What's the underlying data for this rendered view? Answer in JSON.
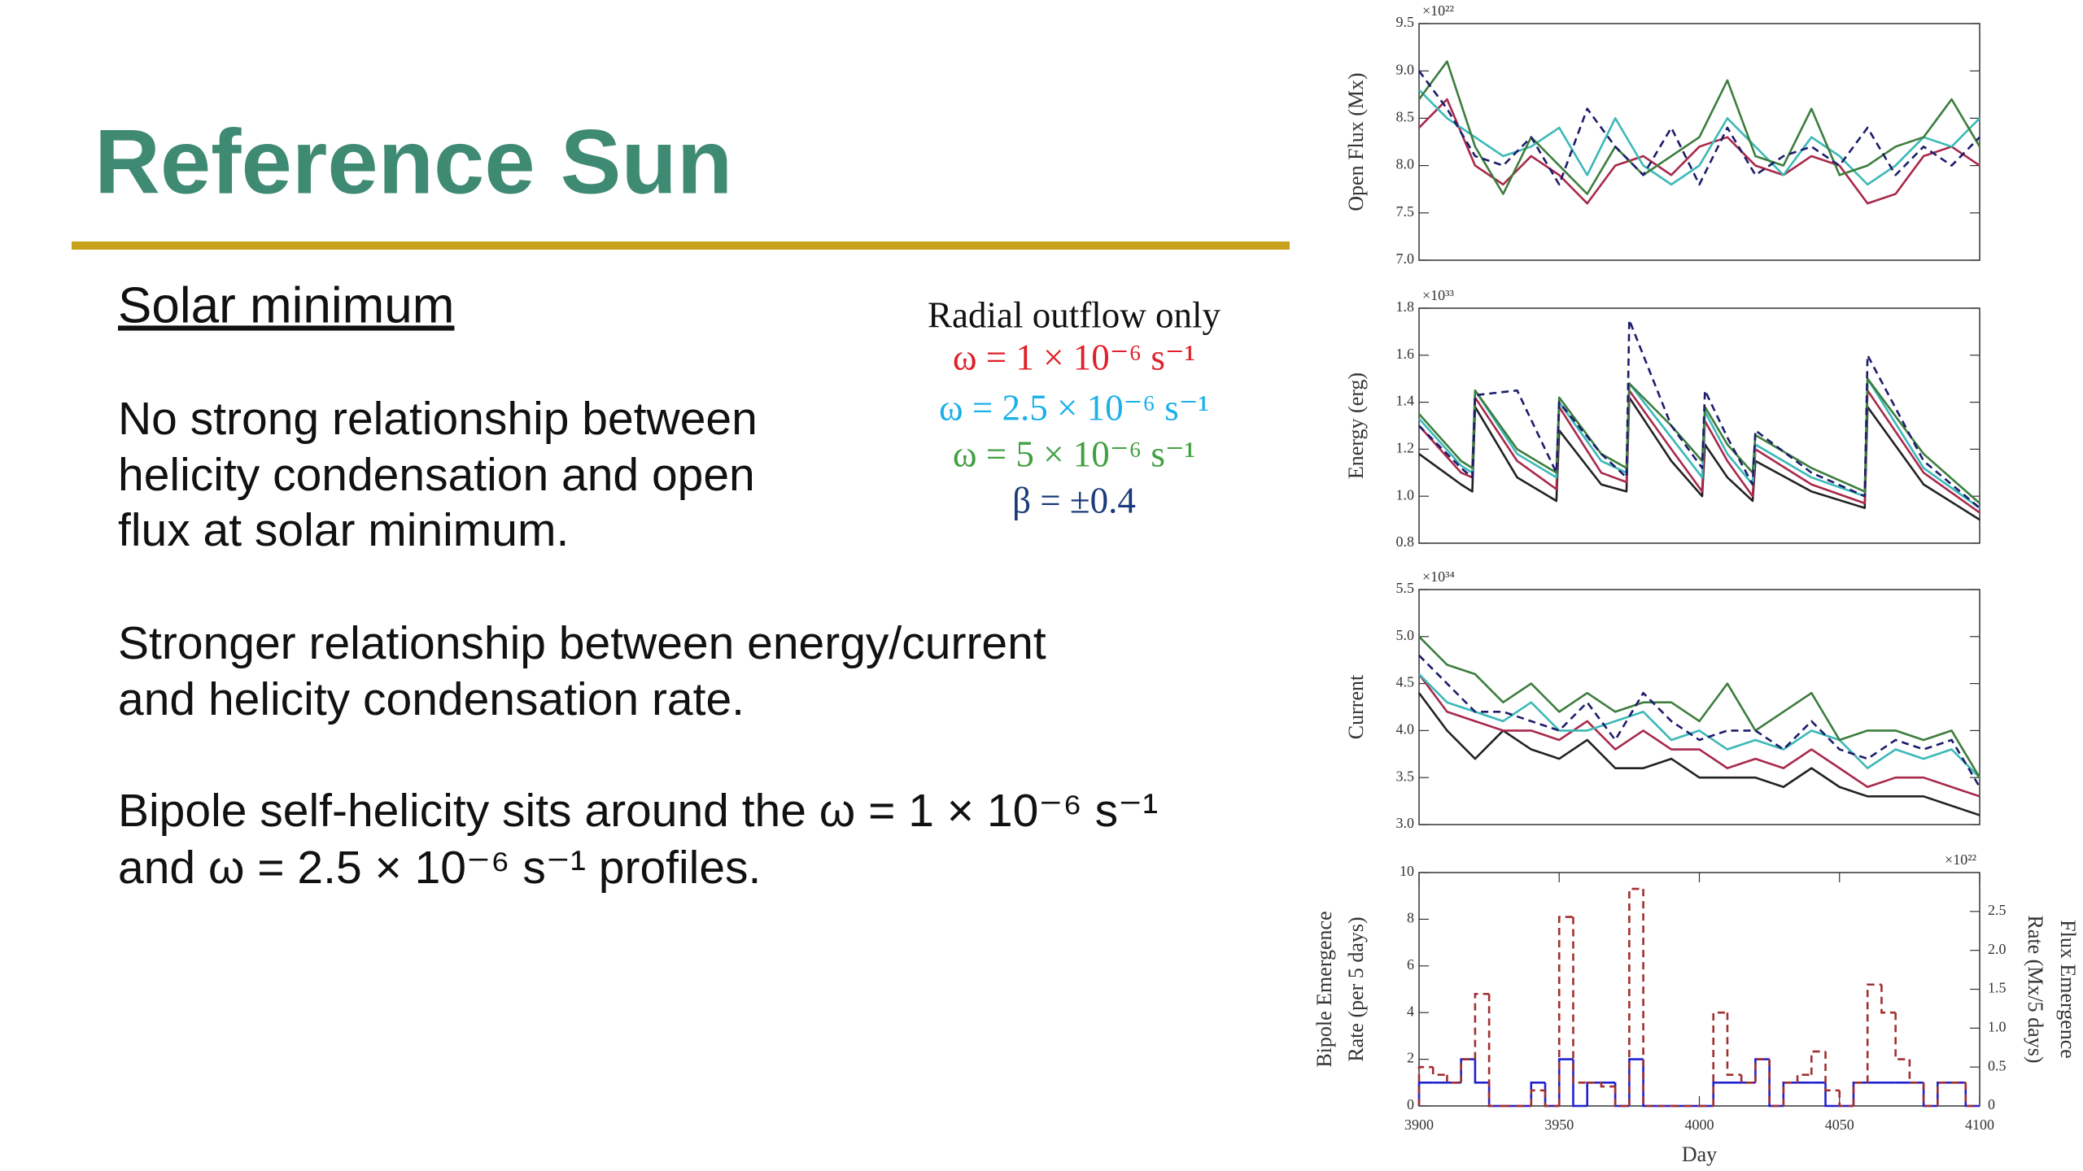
{
  "slide": {
    "title": "Reference Sun",
    "subtitle": "Solar minimum",
    "paragraphs": [
      [
        "No strong relationship between",
        "helicity condensation and open",
        "flux at solar minimum."
      ],
      [
        "Stronger relationship between energy/current",
        "and helicity condensation rate."
      ],
      [
        "Bipole self-helicity sits around the ω = 1 × 10⁻⁶ s⁻¹",
        "and ω = 2.5 × 10⁻⁶ s⁻¹ profiles."
      ]
    ]
  },
  "legend": {
    "heading": "Radial outflow only",
    "items": [
      {
        "text": "ω = 1 × 10⁻⁶ s⁻¹",
        "color": "#e0202a"
      },
      {
        "text": "ω = 2.5 × 10⁻⁶ s⁻¹",
        "color": "#1ab0e8"
      },
      {
        "text": "ω = 5 × 10⁻⁶ s⁻¹",
        "color": "#40a040"
      },
      {
        "text": "β = ±0.4",
        "color": "#1a3a7a"
      }
    ]
  },
  "charts": [
    {
      "type": "line",
      "ylabel": "Open Flux (Mx)",
      "y_multiplier": "×10²²",
      "xlim": [
        3900,
        4100
      ],
      "ylim": [
        7.0,
        9.5
      ],
      "yticks": [
        {
          "value": 7.0,
          "label": "7.0"
        },
        7.5,
        {
          "value": 8.0,
          "label": "8.0"
        },
        8.5,
        {
          "value": 9.0,
          "label": "9.0"
        },
        9.5
      ],
      "x": [
        3900,
        3910,
        3920,
        3930,
        3940,
        3950,
        3960,
        3970,
        3980,
        3990,
        4000,
        4010,
        4020,
        4030,
        4040,
        4050,
        4060,
        4070,
        4080,
        4090,
        4100
      ],
      "series": [
        {
          "color": "#a8294a",
          "values": [
            8.4,
            8.7,
            8.0,
            7.8,
            8.1,
            7.9,
            7.6,
            8.0,
            8.1,
            7.9,
            8.2,
            8.3,
            8.0,
            7.9,
            8.1,
            8.0,
            7.6,
            7.7,
            8.1,
            8.2,
            8.0
          ]
        },
        {
          "color": "#3cb8b8",
          "values": [
            8.8,
            8.5,
            8.3,
            8.1,
            8.2,
            8.4,
            7.9,
            8.5,
            8.0,
            7.8,
            8.0,
            8.5,
            8.2,
            7.9,
            8.3,
            8.1,
            7.8,
            8.0,
            8.3,
            8.2,
            8.5
          ]
        },
        {
          "color": "#3d7d3d",
          "values": [
            8.7,
            9.1,
            8.2,
            7.7,
            8.3,
            8.0,
            7.7,
            8.2,
            7.9,
            8.1,
            8.3,
            8.9,
            8.1,
            8.0,
            8.6,
            7.9,
            8.0,
            8.2,
            8.3,
            8.7,
            8.2
          ]
        },
        {
          "color": "#1c1c6c",
          "dashed": true,
          "values": [
            9.0,
            8.6,
            8.1,
            8.0,
            8.3,
            7.8,
            8.6,
            8.2,
            7.9,
            8.4,
            7.8,
            8.4,
            7.9,
            8.1,
            8.2,
            8.0,
            8.4,
            7.9,
            8.2,
            8.0,
            8.3
          ]
        }
      ]
    },
    {
      "type": "line",
      "ylabel": "Energy (erg)",
      "y_multiplier": "×10³³",
      "xlim": [
        3900,
        4100
      ],
      "ylim": [
        0.8,
        1.8
      ],
      "yticks": [
        0.8,
        {
          "value": 1.0,
          "label": "1.0"
        },
        1.2,
        1.4,
        1.6,
        1.8
      ],
      "x": [
        3900,
        3915,
        3919,
        3920,
        3935,
        3949,
        3950,
        3965,
        3974,
        3975,
        3990,
        4001,
        4002,
        4010,
        4019,
        4020,
        4040,
        4059,
        4060,
        4080,
        4100
      ],
      "series": [
        {
          "color": "#222222",
          "values": [
            1.18,
            1.05,
            1.02,
            1.38,
            1.08,
            0.98,
            1.28,
            1.05,
            1.02,
            1.42,
            1.15,
            1.0,
            1.22,
            1.08,
            0.98,
            1.15,
            1.02,
            0.95,
            1.38,
            1.05,
            0.9
          ]
        },
        {
          "color": "#a8294a",
          "values": [
            1.3,
            1.1,
            1.08,
            1.42,
            1.15,
            1.03,
            1.38,
            1.1,
            1.06,
            1.45,
            1.2,
            1.02,
            1.32,
            1.15,
            1.0,
            1.2,
            1.05,
            0.97,
            1.45,
            1.1,
            0.93
          ]
        },
        {
          "color": "#3cb8b8",
          "values": [
            1.33,
            1.13,
            1.1,
            1.45,
            1.18,
            1.08,
            1.4,
            1.15,
            1.1,
            1.48,
            1.25,
            1.08,
            1.36,
            1.18,
            1.05,
            1.22,
            1.08,
            1.0,
            1.5,
            1.12,
            0.95
          ]
        },
        {
          "color": "#3d7d3d",
          "values": [
            1.35,
            1.15,
            1.12,
            1.45,
            1.2,
            1.1,
            1.42,
            1.18,
            1.12,
            1.48,
            1.3,
            1.15,
            1.38,
            1.22,
            1.1,
            1.26,
            1.12,
            1.02,
            1.5,
            1.18,
            0.97
          ]
        },
        {
          "color": "#1c1c6c",
          "dashed": true,
          "values": [
            1.3,
            1.12,
            1.08,
            1.43,
            1.45,
            1.1,
            1.4,
            1.18,
            1.08,
            1.75,
            1.3,
            1.12,
            1.45,
            1.25,
            1.05,
            1.28,
            1.1,
            1.0,
            1.6,
            1.15,
            0.95
          ]
        }
      ]
    },
    {
      "type": "line",
      "ylabel": "Current",
      "y_multiplier": "×10³⁴",
      "xlim": [
        3900,
        4100
      ],
      "ylim": [
        3.0,
        5.5
      ],
      "yticks": [
        {
          "value": 3.0,
          "label": "3.0"
        },
        3.5,
        {
          "value": 4.0,
          "label": "4.0"
        },
        4.5,
        {
          "value": 5.0,
          "label": "5.0"
        },
        5.5
      ],
      "x": [
        3900,
        3910,
        3920,
        3930,
        3940,
        3950,
        3960,
        3970,
        3980,
        3990,
        4000,
        4010,
        4020,
        4030,
        4040,
        4050,
        4060,
        4070,
        4080,
        4090,
        4100
      ],
      "series": [
        {
          "color": "#222222",
          "values": [
            4.4,
            4.0,
            3.7,
            4.0,
            3.8,
            3.7,
            3.9,
            3.6,
            3.6,
            3.7,
            3.5,
            3.5,
            3.5,
            3.4,
            3.6,
            3.4,
            3.3,
            3.3,
            3.3,
            3.2,
            3.1
          ]
        },
        {
          "color": "#a8294a",
          "values": [
            4.6,
            4.2,
            4.1,
            4.0,
            4.0,
            3.9,
            4.1,
            3.8,
            4.0,
            3.8,
            3.8,
            3.6,
            3.7,
            3.6,
            3.8,
            3.6,
            3.4,
            3.5,
            3.5,
            3.4,
            3.3
          ]
        },
        {
          "color": "#3cb8b8",
          "values": [
            4.6,
            4.3,
            4.2,
            4.1,
            4.3,
            4.0,
            4.0,
            4.1,
            4.2,
            3.9,
            4.0,
            3.8,
            3.9,
            3.8,
            4.0,
            3.9,
            3.6,
            3.8,
            3.7,
            3.8,
            3.5
          ]
        },
        {
          "color": "#3d7d3d",
          "values": [
            5.0,
            4.7,
            4.6,
            4.3,
            4.5,
            4.2,
            4.4,
            4.2,
            4.3,
            4.3,
            4.1,
            4.5,
            4.0,
            4.2,
            4.4,
            3.9,
            4.0,
            4.0,
            3.9,
            4.0,
            3.5
          ]
        },
        {
          "color": "#1c1c6c",
          "dashed": true,
          "values": [
            4.8,
            4.5,
            4.2,
            4.2,
            4.1,
            4.0,
            4.3,
            3.9,
            4.4,
            4.1,
            3.9,
            4.0,
            4.0,
            3.8,
            4.1,
            3.8,
            3.7,
            3.9,
            3.8,
            3.9,
            3.4
          ]
        }
      ]
    },
    {
      "type": "step",
      "ylabel": [
        "Bipole Emergence",
        "Rate (per 5 days)"
      ],
      "y2label": [
        "Flux Emergence",
        "Rate (Mx/5 days)"
      ],
      "y2_multiplier": "×10²²",
      "xlabel": "Day",
      "xlim": [
        3900,
        4100
      ],
      "ylim": [
        0,
        10
      ],
      "y2lim": [
        0,
        3.0
      ],
      "xticks": [
        3900,
        3950,
        4000,
        4050,
        4100
      ],
      "yticks": [
        0,
        2,
        4,
        6,
        8,
        10
      ],
      "y2ticks": [
        0,
        0.5,
        {
          "value": 1.0,
          "label": "1.0"
        },
        1.5,
        {
          "value": 2.0,
          "label": "2.0"
        },
        2.5
      ],
      "bins": [
        3900,
        3905,
        3910,
        3915,
        3920,
        3925,
        3930,
        3935,
        3940,
        3945,
        3950,
        3955,
        3960,
        3965,
        3970,
        3975,
        3980,
        3985,
        3990,
        3995,
        4000,
        4005,
        4010,
        4015,
        4020,
        4025,
        4030,
        4035,
        4040,
        4045,
        4050,
        4055,
        4060,
        4065,
        4070,
        4075,
        4080,
        4085,
        4090,
        4095,
        4100
      ],
      "series": [
        {
          "color": "#2020d0",
          "values": [
            1,
            1,
            1,
            2,
            1,
            0,
            0,
            0,
            1,
            0,
            2,
            0,
            1,
            1,
            0,
            2,
            0,
            0,
            0,
            0,
            0,
            1,
            1,
            1,
            2,
            0,
            1,
            1,
            1,
            0,
            0,
            1,
            1,
            1,
            1,
            1,
            0,
            1,
            1,
            0
          ]
        },
        {
          "color": "#a03030",
          "dashed": true,
          "axis": "y2",
          "values": [
            0.5,
            0.4,
            0.3,
            0.6,
            1.44,
            0,
            0,
            0,
            0.2,
            0,
            2.43,
            0.3,
            0.3,
            0.25,
            0,
            2.79,
            0,
            0,
            0,
            0,
            0,
            1.2,
            0.4,
            0.3,
            0.6,
            0,
            0.3,
            0.4,
            0.7,
            0.2,
            0,
            0.3,
            1.56,
            1.2,
            0.6,
            0.3,
            0,
            0.3,
            0.3,
            0
          ]
        }
      ]
    }
  ]
}
